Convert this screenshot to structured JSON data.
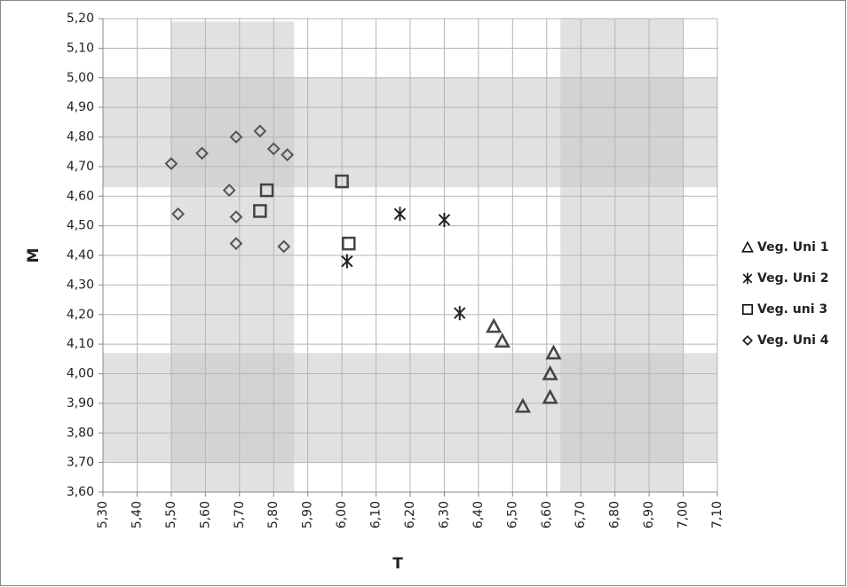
{
  "chart_data": {
    "type": "scatter",
    "x_label": "T",
    "y_label": "M",
    "xlim": [
      5.3,
      7.1
    ],
    "xticks": [
      {
        "value": 5.3,
        "label": "5,30"
      },
      {
        "value": 5.4,
        "label": "5,40"
      },
      {
        "value": 5.5,
        "label": "5,50"
      },
      {
        "value": 5.6,
        "label": "5,60"
      },
      {
        "value": 5.7,
        "label": "5,70"
      },
      {
        "value": 5.8,
        "label": "5,80"
      },
      {
        "value": 5.9,
        "label": "5,90"
      },
      {
        "value": 6.0,
        "label": "6,00"
      },
      {
        "value": 6.1,
        "label": "6,10"
      },
      {
        "value": 6.2,
        "label": "6,20"
      },
      {
        "value": 6.3,
        "label": "6,30"
      },
      {
        "value": 6.4,
        "label": "6,40"
      },
      {
        "value": 6.5,
        "label": "6,50"
      },
      {
        "value": 6.6,
        "label": "6,60"
      },
      {
        "value": 6.7,
        "label": "6,70"
      },
      {
        "value": 6.8,
        "label": "6,80"
      },
      {
        "value": 6.9,
        "label": "6,90"
      },
      {
        "value": 7.0,
        "label": "7,00"
      },
      {
        "value": 7.1,
        "label": "7,10"
      }
    ],
    "ylim": [
      3.6,
      5.2
    ],
    "yticks": [
      {
        "value": 3.6,
        "label": "3,60"
      },
      {
        "value": 3.7,
        "label": "3,70"
      },
      {
        "value": 3.8,
        "label": "3,80"
      },
      {
        "value": 3.9,
        "label": "3,90"
      },
      {
        "value": 4.0,
        "label": "4,00"
      },
      {
        "value": 4.1,
        "label": "4,10"
      },
      {
        "value": 4.2,
        "label": "4,20"
      },
      {
        "value": 4.3,
        "label": "4,30"
      },
      {
        "value": 4.4,
        "label": "4,40"
      },
      {
        "value": 4.5,
        "label": "4,50"
      },
      {
        "value": 4.6,
        "label": "4,60"
      },
      {
        "value": 4.7,
        "label": "4,70"
      },
      {
        "value": 4.8,
        "label": "4,80"
      },
      {
        "value": 4.9,
        "label": "4,90"
      },
      {
        "value": 5.0,
        "label": "5,00"
      },
      {
        "value": 5.1,
        "label": "5,10"
      },
      {
        "value": 5.2,
        "label": "5,20"
      }
    ],
    "grid": true,
    "legend": "right",
    "shaded_regions": [
      {
        "x": [
          5.5,
          5.86
        ],
        "y": [
          3.6,
          5.19
        ]
      },
      {
        "x": [
          6.64,
          7.0
        ],
        "y": [
          3.6,
          5.2
        ]
      },
      {
        "x": [
          5.3,
          7.1
        ],
        "y": [
          4.63,
          5.0
        ]
      },
      {
        "x": [
          5.3,
          7.1
        ],
        "y": [
          3.7,
          4.07
        ]
      }
    ],
    "series": [
      {
        "name": "Veg. Uni 1",
        "marker": "triangle",
        "color": "#444444",
        "x": [
          6.445,
          6.47,
          6.62,
          6.61,
          6.61,
          6.53
        ],
        "y": [
          4.16,
          4.11,
          4.07,
          4.0,
          3.92,
          3.89
        ]
      },
      {
        "name": "Veg. Uni 2",
        "marker": "asterisk",
        "color": "#222222",
        "x": [
          6.015,
          6.17,
          6.3,
          6.345
        ],
        "y": [
          4.38,
          4.54,
          4.52,
          4.205
        ]
      },
      {
        "name": "Veg. uni 3",
        "marker": "square",
        "color": "#444444",
        "x": [
          6.02,
          6.0,
          5.78,
          5.76
        ],
        "y": [
          4.44,
          4.65,
          4.62,
          4.55
        ]
      },
      {
        "name": "Veg. Uni 4",
        "marker": "diamond",
        "color": "#555555",
        "x": [
          5.5,
          5.59,
          5.69,
          5.76,
          5.8,
          5.84,
          5.67,
          5.52,
          5.69,
          5.69,
          5.83
        ],
        "y": [
          4.71,
          4.745,
          4.8,
          4.82,
          4.76,
          4.74,
          4.62,
          4.54,
          4.53,
          4.44,
          4.43
        ]
      }
    ]
  }
}
